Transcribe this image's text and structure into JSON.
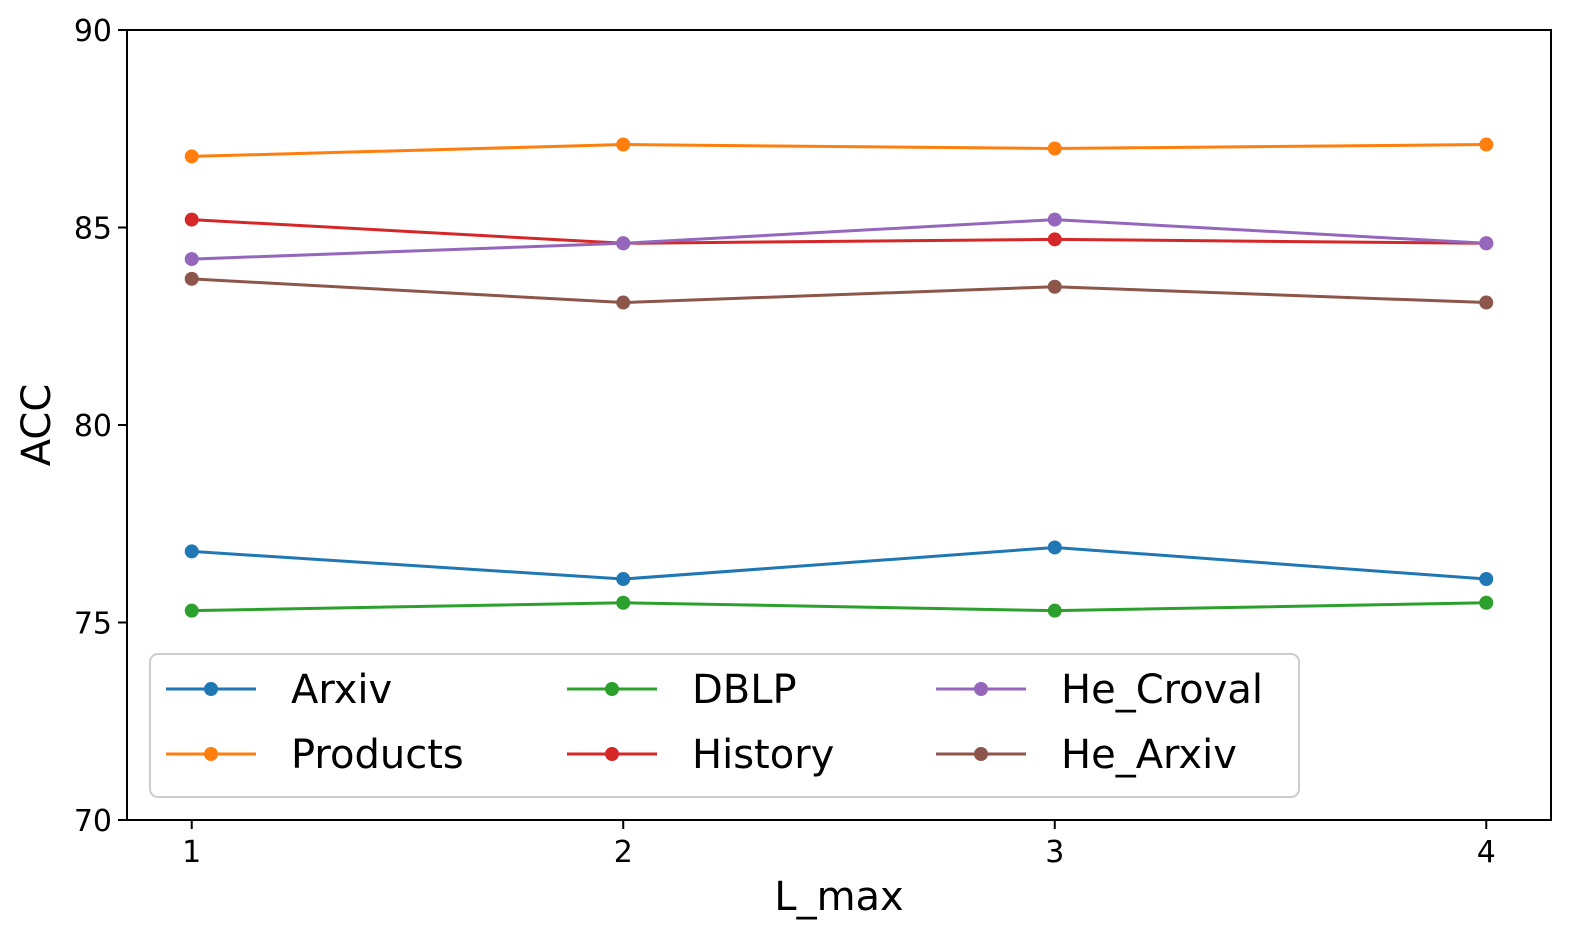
{
  "chart_data": {
    "type": "line",
    "title": "",
    "xlabel": "L_max",
    "ylabel": "ACC",
    "x": [
      1,
      2,
      3,
      4
    ],
    "xticks": [
      "1",
      "2",
      "3",
      "4"
    ],
    "xlim": [
      0.85,
      4.15
    ],
    "ylim": [
      70,
      90
    ],
    "yticks": [
      "70",
      "75",
      "80",
      "85",
      "90"
    ],
    "grid": false,
    "legend_position": "lower-left",
    "legend_columns": 3,
    "series": [
      {
        "name": "Arxiv",
        "color": "#1f77b4",
        "values": [
          76.8,
          76.1,
          76.9,
          76.1
        ]
      },
      {
        "name": "Products",
        "color": "#ff7f0e",
        "values": [
          86.8,
          87.1,
          87.0,
          87.1
        ]
      },
      {
        "name": "DBLP",
        "color": "#2ca02c",
        "values": [
          75.3,
          75.5,
          75.3,
          75.5
        ]
      },
      {
        "name": "History",
        "color": "#d62728",
        "values": [
          85.2,
          84.6,
          84.7,
          84.6
        ]
      },
      {
        "name": "He_Croval",
        "color": "#9467bd",
        "values": [
          84.2,
          84.6,
          85.2,
          84.6
        ]
      },
      {
        "name": "He_Arxiv",
        "color": "#8c564b",
        "values": [
          83.7,
          83.1,
          83.5,
          83.1
        ]
      }
    ]
  }
}
